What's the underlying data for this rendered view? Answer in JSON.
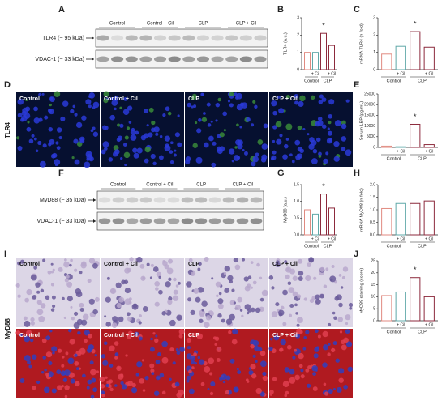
{
  "blots": [
    {
      "letter": "A",
      "lanes": [
        "Control",
        "Control + Cil",
        "CLP",
        "CLP + Cil"
      ],
      "bands": [
        "TLR4 (~ 95 kDa)",
        "VDAC-1 (~ 33 kDa)"
      ]
    },
    {
      "letter": "F",
      "lanes": [
        "Control",
        "Control + Cil",
        "CLP",
        "CLP + Cil"
      ],
      "bands": [
        "MyD88 (~ 35 kDa)",
        "VDAC-1 (~ 33 kDa)"
      ]
    }
  ],
  "micrographs": [
    {
      "letter": "D",
      "side_label": "TLR4",
      "rows": [
        [
          "Control",
          "Control + Cil",
          "CLP",
          "CLP + Cil"
        ]
      ]
    },
    {
      "letter": "I",
      "side_label": "MyD88",
      "rows": [
        [
          "Control",
          "Control + Cil",
          "CLP",
          "CLP + Cil"
        ],
        [
          "Control",
          "Control + Cil",
          "CLP",
          "CLP + Cil"
        ]
      ]
    }
  ],
  "chart_data": [
    {
      "type": "bar",
      "letter": "B",
      "ylabel": "TLR4 (a.u.)",
      "categories": [
        null,
        "+ Cil",
        null,
        "+ Cil"
      ],
      "groups": [
        "Control",
        "CLP"
      ],
      "values": [
        1.0,
        1.0,
        2.1,
        1.4
      ],
      "colors": [
        "#e08a80",
        "#5fa8a8",
        "#8c2a3c",
        "#8c2a3c"
      ],
      "significance": [
        null,
        null,
        "*",
        null
      ],
      "ylim": [
        0,
        3
      ],
      "yticks": [
        0,
        1,
        2,
        3
      ]
    },
    {
      "type": "bar",
      "letter": "C",
      "ylabel": "mRNA TLR4 (n-fold)",
      "categories": [
        null,
        "+ Cil",
        null,
        "+ Cil"
      ],
      "groups": [
        "Control",
        "CLP"
      ],
      "values": [
        0.9,
        1.35,
        2.2,
        1.3
      ],
      "colors": [
        "#e08a80",
        "#5fa8a8",
        "#8c2a3c",
        "#8c2a3c"
      ],
      "significance": [
        null,
        null,
        "*",
        null
      ],
      "ylim": [
        0,
        3
      ],
      "yticks": [
        0,
        1,
        2,
        3
      ]
    },
    {
      "type": "bar",
      "letter": "E",
      "ylabel": "Serum LBP (pg/mL)",
      "categories": [
        null,
        "+ Cil",
        null,
        "+ Cil"
      ],
      "groups": [
        "Control",
        "CLP"
      ],
      "values": [
        600,
        300,
        10800,
        1300
      ],
      "colors": [
        "#e08a80",
        "#5fa8a8",
        "#8c2a3c",
        "#8c2a3c"
      ],
      "significance": [
        null,
        null,
        "*",
        null
      ],
      "ylim": [
        0,
        25000
      ],
      "yticks": [
        0,
        5000,
        10000,
        15000,
        20000,
        25000
      ]
    },
    {
      "type": "bar",
      "letter": "G",
      "ylabel": "MyD88 (a.u.)",
      "categories": [
        null,
        "+ Cil",
        null,
        "+ Cil"
      ],
      "groups": [
        "Control",
        "CLP"
      ],
      "values": [
        0.75,
        0.62,
        1.22,
        0.8
      ],
      "colors": [
        "#e08a80",
        "#5fa8a8",
        "#8c2a3c",
        "#8c2a3c"
      ],
      "significance": [
        null,
        null,
        "*",
        null
      ],
      "ylim": [
        0,
        1.5
      ],
      "yticks": [
        {
          "value": 0,
          "label": "0.0"
        },
        0.5,
        {
          "value": 1,
          "label": "1.0"
        },
        1.5
      ]
    },
    {
      "type": "bar",
      "letter": "H",
      "ylabel": "mRNA MyD88 (n-fold)",
      "categories": [
        null,
        "+ Cil",
        null,
        "+ Cil"
      ],
      "groups": [
        "Control",
        "CLP"
      ],
      "values": [
        1.05,
        1.25,
        1.25,
        1.35
      ],
      "colors": [
        "#e08a80",
        "#5fa8a8",
        "#8c2a3c",
        "#8c2a3c"
      ],
      "significance": [
        null,
        null,
        null,
        null
      ],
      "ylim": [
        0,
        2
      ],
      "yticks": [
        {
          "value": 0,
          "label": "0.0"
        },
        0.5,
        {
          "value": 1,
          "label": "1.0"
        },
        1.5,
        {
          "value": 2,
          "label": "2.0"
        }
      ]
    },
    {
      "type": "bar",
      "letter": "J",
      "ylabel": "MyD88 staining (score)",
      "categories": [
        null,
        "+ Cil",
        null,
        "+ Cil"
      ],
      "groups": [
        "Control",
        "CLP"
      ],
      "values": [
        10.5,
        12,
        18,
        10
      ],
      "colors": [
        "#e08a80",
        "#5fa8a8",
        "#8c2a3c",
        "#8c2a3c"
      ],
      "significance": [
        null,
        null,
        "*",
        null
      ],
      "ylim": [
        0,
        25
      ],
      "yticks": [
        0,
        5,
        10,
        15,
        20,
        25
      ]
    }
  ]
}
